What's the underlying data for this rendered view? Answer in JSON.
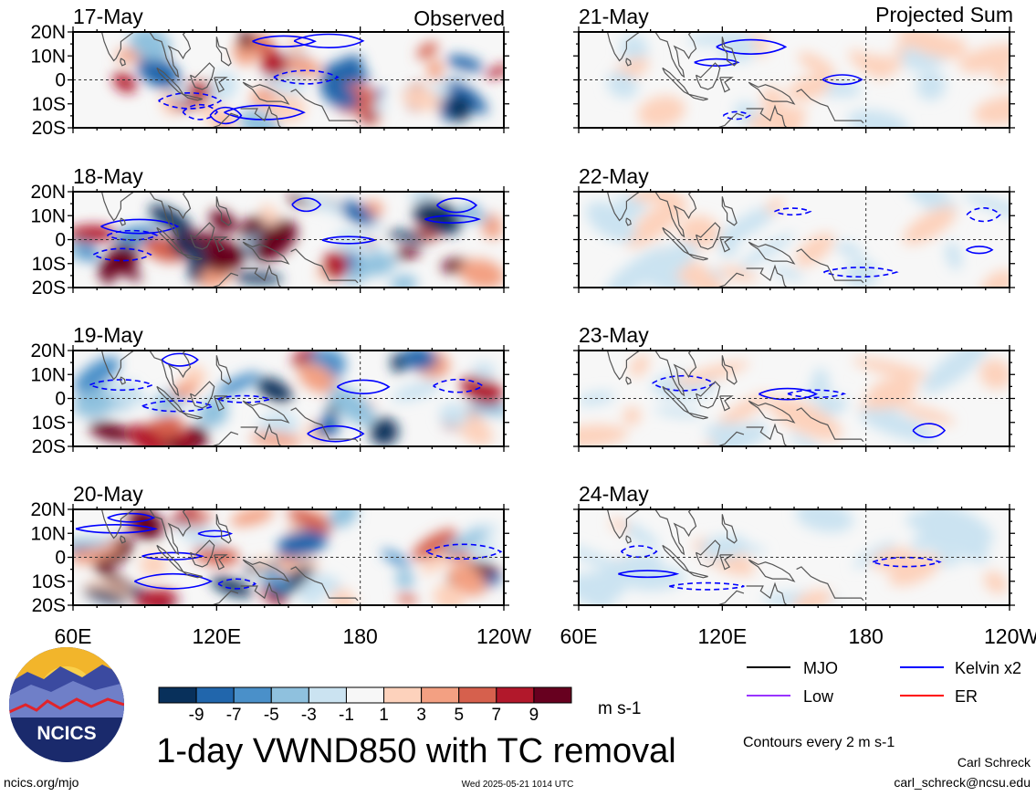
{
  "chart_data": {
    "type": "heatmap",
    "title": "1-day VWND850 with TC removal",
    "units": "m s-1",
    "columns": [
      {
        "label": "Observed",
        "panels": [
          "17-May",
          "18-May",
          "19-May",
          "20-May"
        ]
      },
      {
        "label": "Projected Sum",
        "panels": [
          "21-May",
          "22-May",
          "23-May",
          "24-May"
        ]
      }
    ],
    "x_ticks": [
      "60E",
      "120E",
      "180",
      "120W"
    ],
    "y_ticks": [
      "20N",
      "10N",
      "0",
      "10S",
      "20S"
    ],
    "x_range": [
      60,
      240
    ],
    "y_range": [
      -20,
      20
    ],
    "colorbar": {
      "levels": [
        "-9",
        "-7",
        "-5",
        "-3",
        "-1",
        "1",
        "3",
        "5",
        "7",
        "9"
      ],
      "colors": [
        "#08305b",
        "#2166ac",
        "#4a90c9",
        "#8fc1de",
        "#cbe3f1",
        "#f7f7f7",
        "#fdd2bc",
        "#f3a082",
        "#d6604d",
        "#b2182b",
        "#67001f"
      ]
    },
    "legend": [
      {
        "label": "MJO",
        "color": "#000000"
      },
      {
        "label": "Kelvin x2",
        "color": "#0000ff"
      },
      {
        "label": "Low",
        "color": "#9933ff"
      },
      {
        "label": "ER",
        "color": "#ff0000"
      }
    ],
    "contour_note": "Contours every 2 m s-1",
    "grid": false
  },
  "logo": {
    "text": "NCICS"
  },
  "footer": {
    "link": "ncics.org/mjo",
    "timestamp": "Wed 2025-05-21 1014 UTC",
    "author": "Carl Schreck",
    "email": "carl_schreck@ncsu.edu"
  }
}
